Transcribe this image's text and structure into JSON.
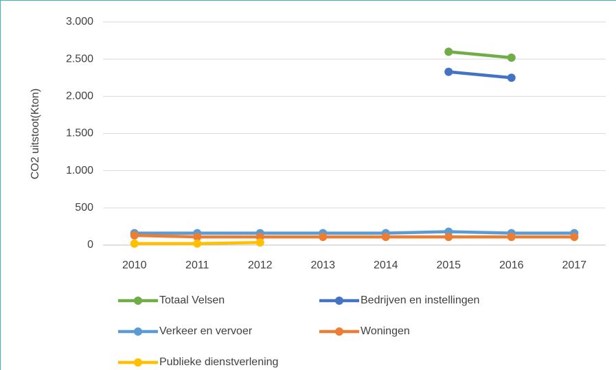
{
  "chart_data": {
    "type": "line",
    "ylabel": "CO2 uitstoot(Kton)",
    "categories": [
      "2010",
      "2011",
      "2012",
      "2013",
      "2014",
      "2015",
      "2016",
      "2017"
    ],
    "series": [
      {
        "name": "Totaal Velsen",
        "color": "#70ad47",
        "values": [
          null,
          null,
          null,
          null,
          null,
          2600,
          2520,
          null
        ]
      },
      {
        "name": "Bedrijven en instellingen",
        "color": "#4472c4",
        "values": [
          null,
          null,
          null,
          null,
          null,
          2330,
          2250,
          null
        ]
      },
      {
        "name": "Verkeer en vervoer",
        "color": "#5b9bd5",
        "values": [
          160,
          160,
          160,
          160,
          160,
          180,
          160,
          160
        ]
      },
      {
        "name": "Woningen",
        "color": "#ed7d31",
        "values": [
          130,
          110,
          110,
          110,
          110,
          110,
          110,
          110
        ]
      },
      {
        "name": "Publieke dienstverlening",
        "color": "#ffc000",
        "values": [
          20,
          20,
          35,
          null,
          null,
          null,
          null,
          null
        ]
      }
    ],
    "ylim": [
      0,
      3000
    ],
    "yticks": [
      0,
      500,
      {
        "value": 1000,
        "label": "1.000"
      },
      {
        "value": 1500,
        "label": "1.500"
      },
      {
        "value": 2000,
        "label": "2.000"
      },
      {
        "value": 2500,
        "label": "2.500"
      },
      {
        "value": 3000,
        "label": "3.000"
      }
    ],
    "grid": true,
    "legend": "bottom"
  }
}
